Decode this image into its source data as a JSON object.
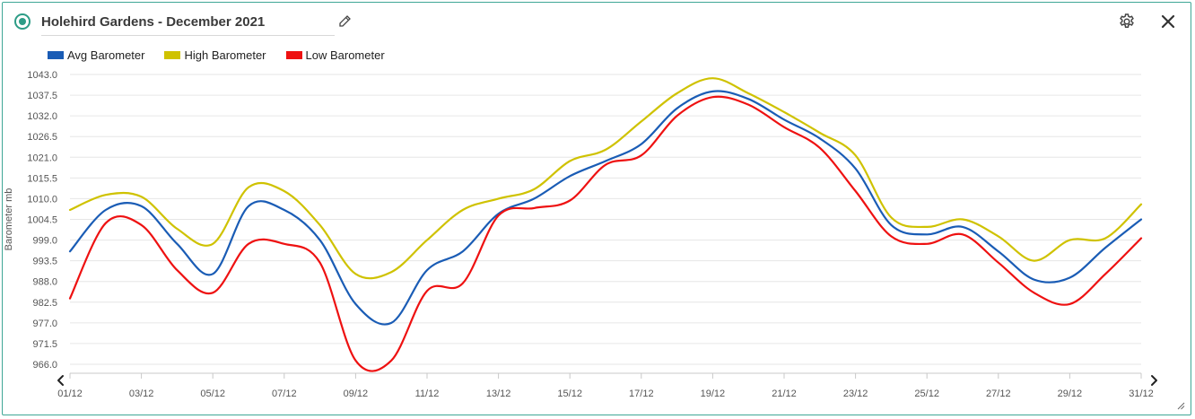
{
  "header": {
    "title": "Holehird Gardens - December 2021"
  },
  "icons": {
    "status": "status-dot-icon",
    "edit": "pencil-icon",
    "settings": "gear-icon",
    "close": "close-icon",
    "prev": "chevron-left-icon",
    "next": "chevron-right-icon",
    "resize": "resize-handle-icon"
  },
  "colors": {
    "accent": "#2d9c86",
    "avg": "#1a5cb5",
    "high": "#cfc200",
    "low": "#ee1111"
  },
  "chart_data": {
    "type": "line",
    "title": "",
    "xlabel": "",
    "ylabel": "Barometer mb",
    "x": [
      1,
      2,
      3,
      4,
      5,
      6,
      7,
      8,
      9,
      10,
      11,
      12,
      13,
      14,
      15,
      16,
      17,
      18,
      19,
      20,
      21,
      22,
      23,
      24,
      25,
      26,
      27,
      28,
      29,
      30,
      31
    ],
    "x_tick_labels": [
      "01/12",
      "03/12",
      "05/12",
      "07/12",
      "09/12",
      "11/12",
      "13/12",
      "15/12",
      "17/12",
      "19/12",
      "21/12",
      "23/12",
      "25/12",
      "27/12",
      "29/12",
      "31/12"
    ],
    "y_ticks": [
      "966.0",
      "971.5",
      "977.0",
      "982.5",
      "988.0",
      "993.5",
      "999.0",
      "1004.5",
      "1010.0",
      "1015.5",
      "1021.0",
      "1026.5",
      "1032.0",
      "1037.5",
      "1043.0"
    ],
    "ylim": [
      966.0,
      1043.0
    ],
    "grid": true,
    "legend_position": "top-left",
    "series": [
      {
        "name": "Avg Barometer",
        "color": "#1a5cb5",
        "values": [
          996.0,
          1007.0,
          1008.0,
          998.0,
          990.0,
          1008.0,
          1007.0,
          999.0,
          982.0,
          977.0,
          991.0,
          996.0,
          1006.0,
          1010.0,
          1016.0,
          1020.0,
          1024.5,
          1034.0,
          1038.5,
          1036.5,
          1031.0,
          1026.0,
          1018.0,
          1003.0,
          1000.5,
          1002.5,
          996.0,
          988.5,
          989.0,
          997.0,
          1004.5
        ]
      },
      {
        "name": "High Barometer",
        "color": "#cfc200",
        "values": [
          1007.0,
          1011.0,
          1010.5,
          1002.0,
          998.0,
          1013.0,
          1012.0,
          1003.0,
          990.0,
          990.5,
          999.0,
          1007.0,
          1010.0,
          1012.5,
          1020.0,
          1023.0,
          1030.5,
          1038.0,
          1042.0,
          1038.0,
          1033.0,
          1027.5,
          1021.5,
          1005.0,
          1002.5,
          1004.5,
          1000.0,
          993.5,
          999.0,
          999.5,
          1008.5
        ]
      },
      {
        "name": "Low Barometer",
        "color": "#ee1111",
        "values": [
          983.5,
          1003.5,
          1003.0,
          991.0,
          985.0,
          998.0,
          998.0,
          993.0,
          967.0,
          967.0,
          985.5,
          987.5,
          1005.5,
          1007.5,
          1009.5,
          1019.0,
          1021.5,
          1032.0,
          1037.0,
          1035.0,
          1029.0,
          1023.5,
          1012.0,
          1000.0,
          998.0,
          1000.5,
          993.0,
          985.0,
          982.0,
          990.0,
          999.5
        ]
      }
    ]
  }
}
